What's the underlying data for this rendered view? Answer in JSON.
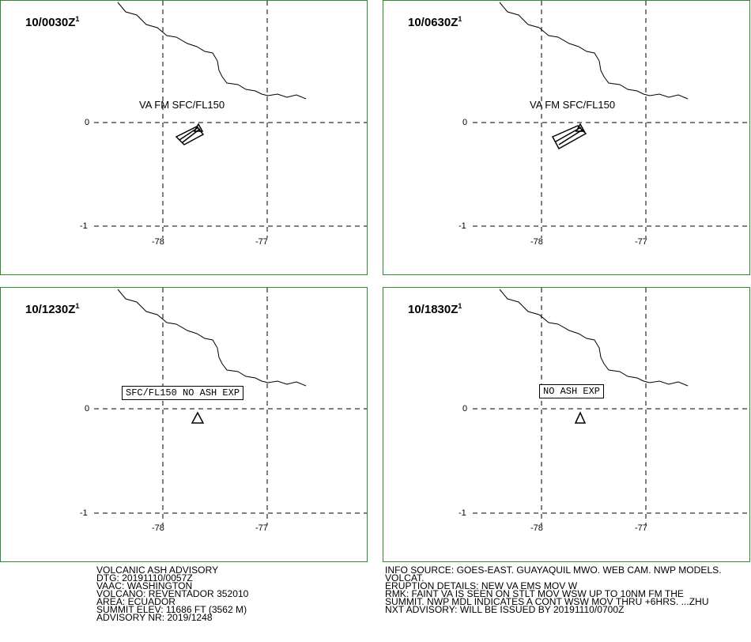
{
  "panels": [
    {
      "time": "10/0030Z",
      "sup": "1",
      "annotation": "VA FM SFC/FL150",
      "annotation_type": "plain"
    },
    {
      "time": "10/0630Z",
      "sup": "1",
      "annotation": "VA FM SFC/FL150",
      "annotation_type": "plain"
    },
    {
      "time": "10/1230Z",
      "sup": "1",
      "annotation": "SFC/FL150 NO ASH EXP",
      "annotation_type": "boxed"
    },
    {
      "time": "10/1830Z",
      "sup": "1",
      "annotation": "NO ASH EXP",
      "annotation_type": "boxed"
    }
  ],
  "axis_labels": {
    "lat_0": "0",
    "lat_m1": "-1",
    "lon_m78": "-78",
    "lon_m77": "-77"
  },
  "advisory_left": [
    "VOLCANIC ASH ADVISORY",
    "DTG: 20191110/0057Z",
    "VAAC: WASHINGTON",
    "VOLCANO: REVENTADOR 352010",
    "AREA: ECUADOR",
    "SUMMIT ELEV: 11686 FT (3562 M)",
    "ADVISORY NR: 2019/1248"
  ],
  "advisory_right": [
    "INFO SOURCE: GOES-EAST. GUAYAQUIL MWO. WEB CAM. NWP MODELS.",
    "VOLCAT.",
    "ERUPTION DETAILS: NEW VA EMS MOV W",
    "RMK: FAINT VA IS SEEN ON STLT MOV WSW UP TO 10NM FM THE",
    "SUMMIT. NWP MDL INDICATES A CONT WSW MOV THRU +6HRS. ...ZHU",
    "NXT ADVISORY: WILL BE ISSUED BY 20191110/0700Z"
  ],
  "colors": {
    "border": "#2e8b2e",
    "lines": "#000000",
    "background": "#ffffff"
  }
}
